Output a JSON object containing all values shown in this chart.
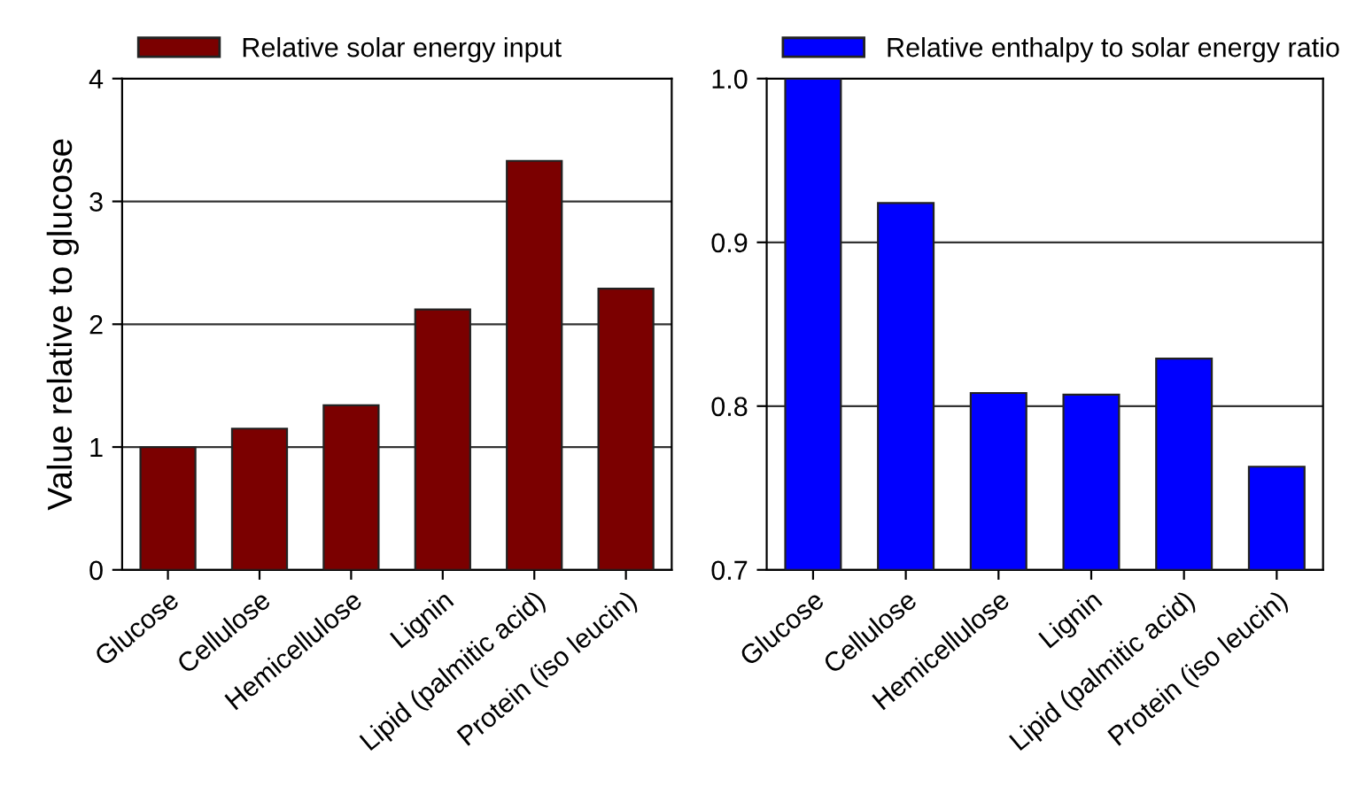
{
  "chart_data": [
    {
      "type": "bar",
      "ylabel": "Value relative to glucose",
      "categories": [
        "Glucose",
        "Cellulose",
        "Hemicellulose",
        "Lignin",
        "Lipid (palmitic acid)",
        "Protein (iso leucin)"
      ],
      "series": [
        {
          "name": "Relative solar energy input",
          "color": "#7b0000",
          "values": [
            1.0,
            1.15,
            1.34,
            2.12,
            3.33,
            2.29
          ]
        }
      ],
      "ylim": [
        0,
        4
      ],
      "yticks": [
        0,
        1,
        2,
        3,
        4
      ],
      "grid": "y",
      "legend": "top"
    },
    {
      "type": "bar",
      "categories": [
        "Glucose",
        "Cellulose",
        "Hemicellulose",
        "Lignin",
        "Lipid (palmitic acid)",
        "Protein (iso leucin)"
      ],
      "series": [
        {
          "name": "Relative enthalpy to solar energy ratio",
          "color": "#0000ff",
          "values": [
            1.0,
            0.924,
            0.808,
            0.807,
            0.829,
            0.763
          ]
        }
      ],
      "ylim": [
        0.7,
        1.0
      ],
      "yticks": [
        0.7,
        0.8,
        0.9,
        {
          "value": 1.0,
          "label": "1.0"
        }
      ],
      "grid": "y",
      "legend": "top"
    }
  ]
}
